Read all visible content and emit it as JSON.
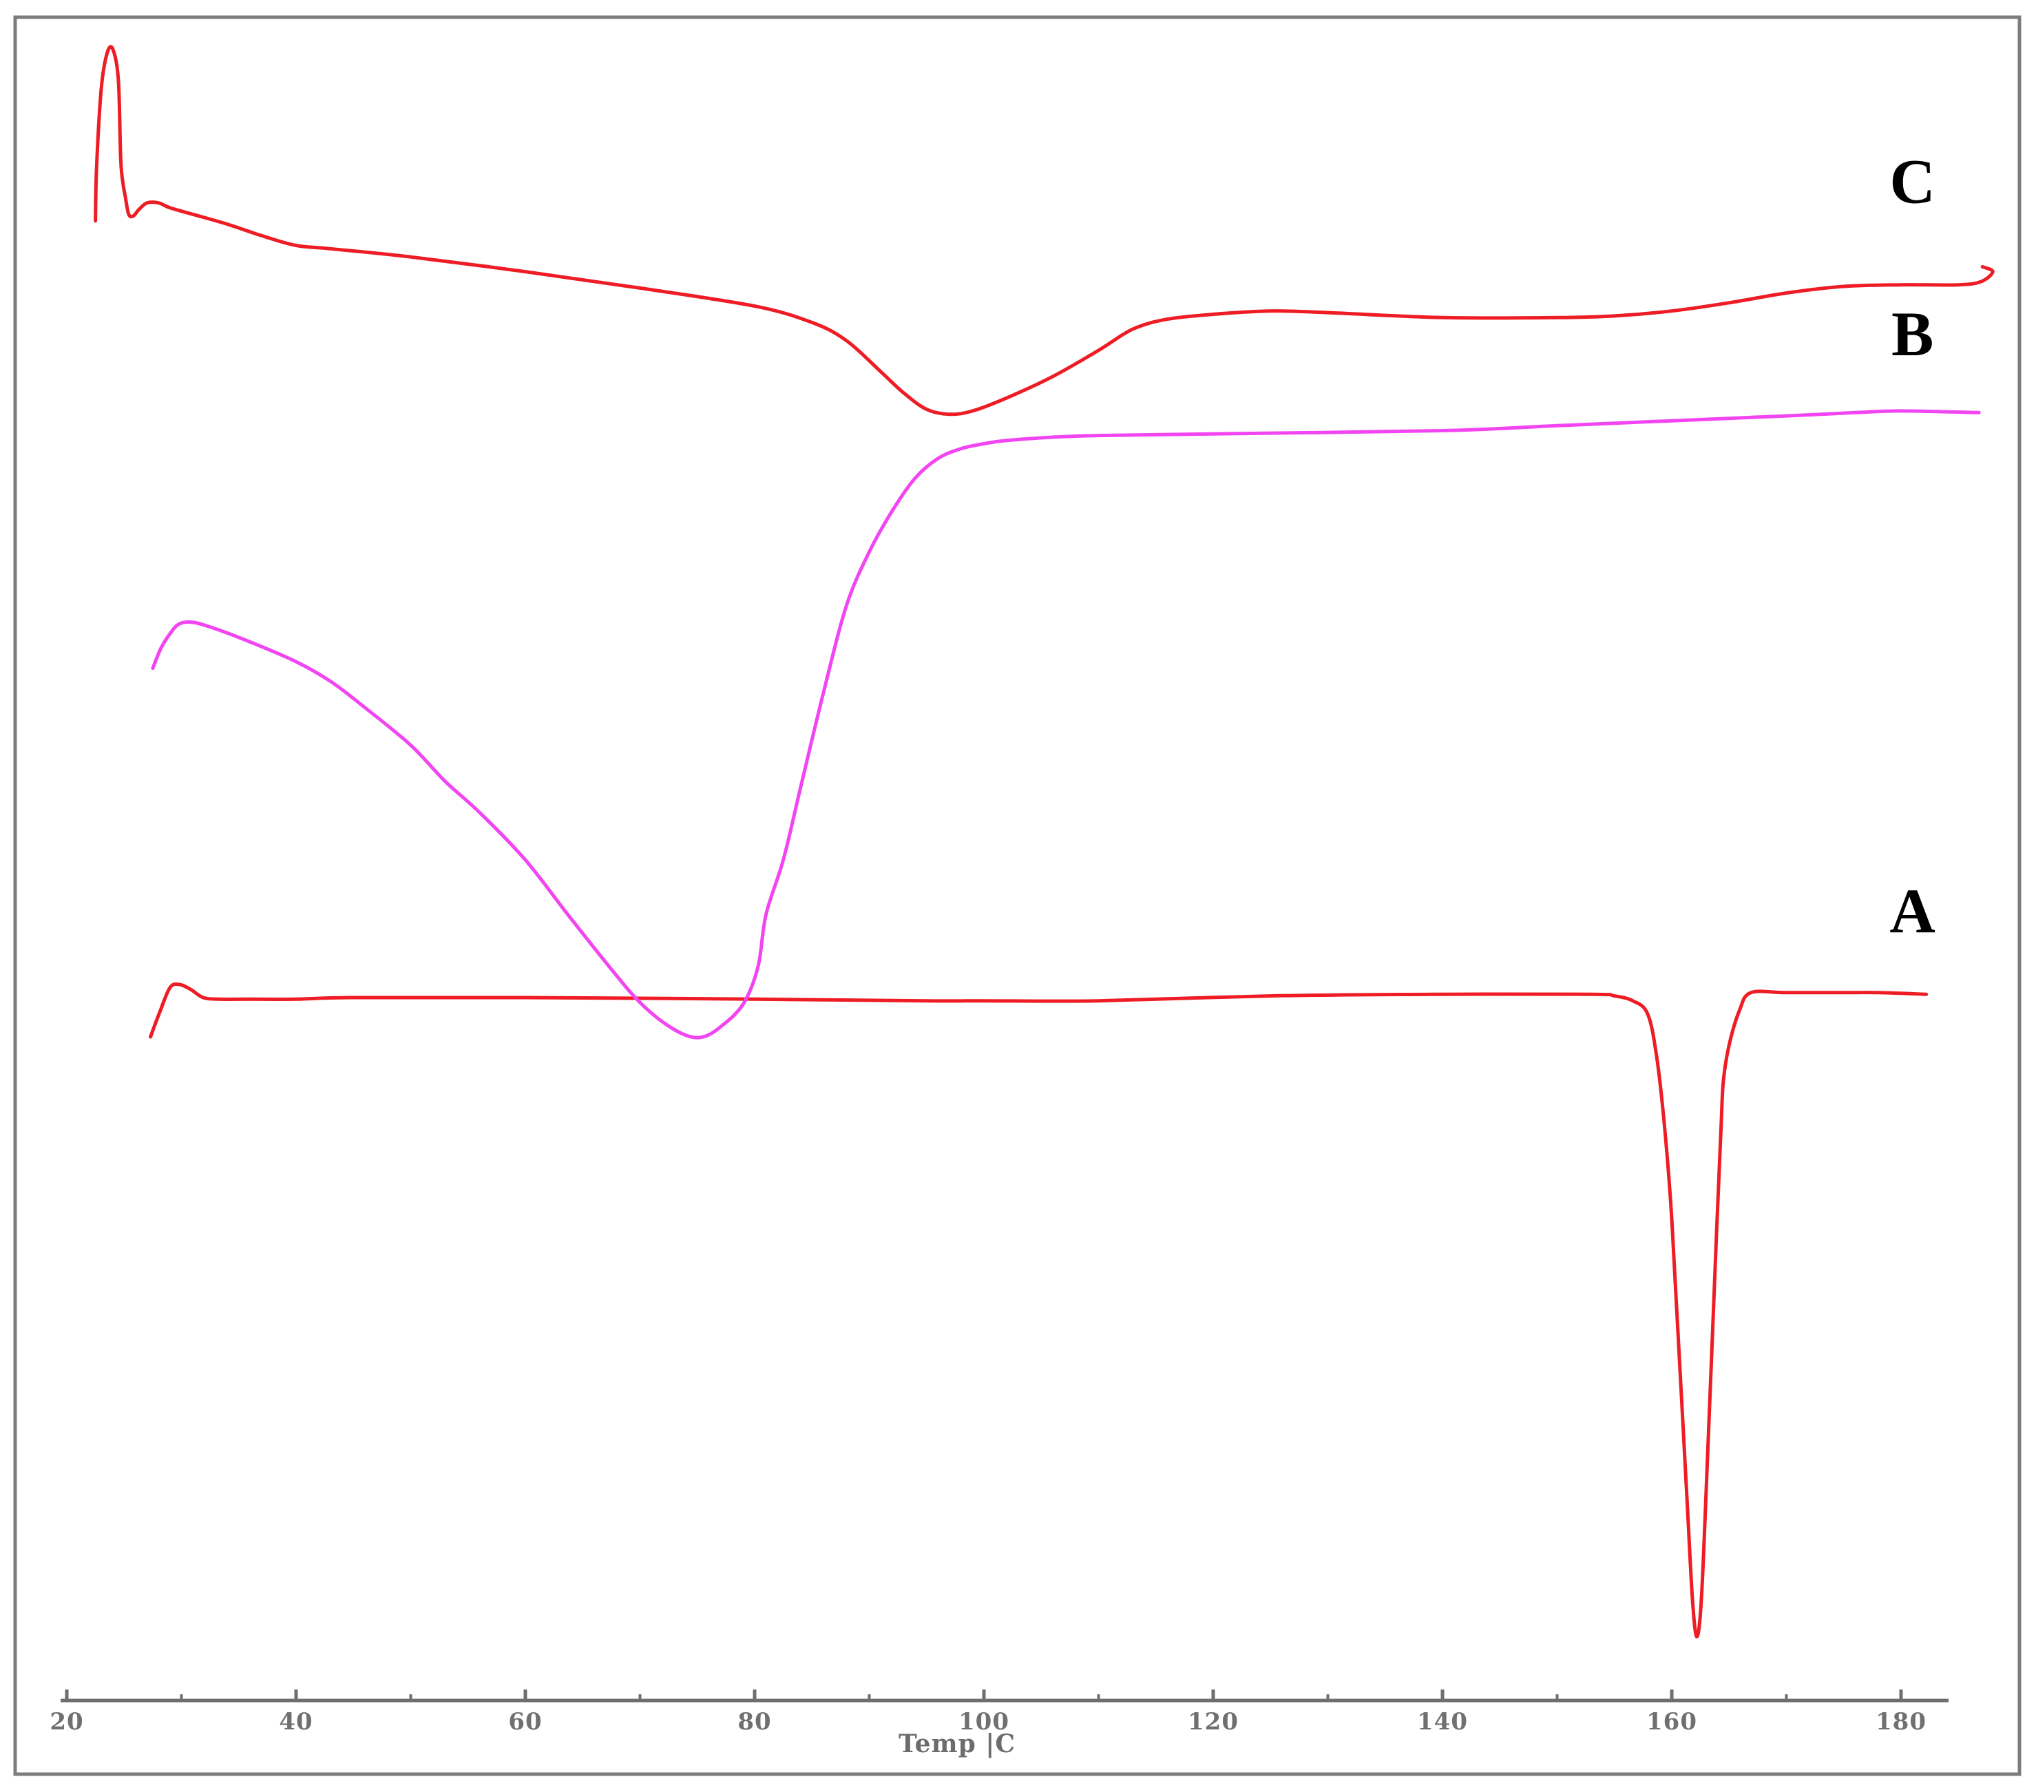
{
  "chart_data": {
    "type": "line",
    "title": "",
    "xlabel": "Temp |C",
    "ylabel": "",
    "xlim": [
      20,
      190
    ],
    "ylim": [
      0,
      100
    ],
    "x_ticks_major": [
      20,
      40,
      60,
      80,
      100,
      120,
      140,
      160,
      180
    ],
    "x_ticks_minor": [
      30,
      50,
      70,
      90,
      110,
      130,
      150,
      170
    ],
    "grid": false,
    "legend": "none",
    "series": [
      {
        "name": "A",
        "color": "#ee1c24",
        "label_at": [
          181,
          44.8
        ],
        "points": [
          [
            27.3,
            38.4
          ],
          [
            28.1,
            39.9
          ],
          [
            29.0,
            41.4
          ],
          [
            29.8,
            41.6
          ],
          [
            30.8,
            41.3
          ],
          [
            31.9,
            40.8
          ],
          [
            33.3,
            40.7
          ],
          [
            36,
            40.7
          ],
          [
            40,
            40.7
          ],
          [
            45,
            40.8
          ],
          [
            60,
            40.8
          ],
          [
            80,
            40.7
          ],
          [
            95,
            40.6
          ],
          [
            100,
            40.6
          ],
          [
            110,
            40.6
          ],
          [
            125,
            40.9
          ],
          [
            140,
            41.0
          ],
          [
            153,
            41.0
          ],
          [
            155,
            40.9
          ],
          [
            156.6,
            40.6
          ],
          [
            157.9,
            39.8
          ],
          [
            158.7,
            37.1
          ],
          [
            159.4,
            32.7
          ],
          [
            160,
            27.3
          ],
          [
            160.6,
            19.6
          ],
          [
            161.3,
            10.6
          ],
          [
            161.8,
            4.1
          ],
          [
            162.2,
            1.8
          ],
          [
            162.6,
            4.3
          ],
          [
            163.1,
            12.4
          ],
          [
            163.9,
            26.3
          ],
          [
            164.3,
            32.9
          ],
          [
            164.5,
            35.7
          ],
          [
            165.0,
            37.9
          ],
          [
            165.9,
            40.0
          ],
          [
            166.9,
            41.1
          ],
          [
            170,
            41.1
          ],
          [
            175,
            41.1
          ],
          [
            178,
            41.1
          ],
          [
            182.2,
            41.0
          ]
        ]
      },
      {
        "name": "B",
        "color": "#f245f2",
        "label_at": [
          181,
          80.0
        ],
        "points": [
          [
            27.5,
            60.9
          ],
          [
            28.2,
            62.1
          ],
          [
            29.0,
            63.0
          ],
          [
            29.8,
            63.6
          ],
          [
            31.0,
            63.7
          ],
          [
            33,
            63.3
          ],
          [
            36,
            62.5
          ],
          [
            40,
            61.3
          ],
          [
            43,
            60.1
          ],
          [
            46,
            58.5
          ],
          [
            50,
            56.2
          ],
          [
            53,
            54.0
          ],
          [
            56,
            52.1
          ],
          [
            60,
            49.2
          ],
          [
            64,
            45.6
          ],
          [
            68,
            42.1
          ],
          [
            70,
            40.5
          ],
          [
            72,
            39.3
          ],
          [
            74,
            38.5
          ],
          [
            75.5,
            38.4
          ],
          [
            77,
            39.0
          ],
          [
            79,
            40.4
          ],
          [
            80.3,
            42.7
          ],
          [
            81,
            45.9
          ],
          [
            82.5,
            49.2
          ],
          [
            84,
            53.6
          ],
          [
            86,
            59.4
          ],
          [
            88,
            64.7
          ],
          [
            90,
            68.0
          ],
          [
            92,
            70.5
          ],
          [
            94,
            72.5
          ],
          [
            96,
            73.7
          ],
          [
            98,
            74.3
          ],
          [
            100,
            74.6
          ],
          [
            102,
            74.8
          ],
          [
            106,
            75.0
          ],
          [
            110,
            75.1
          ],
          [
            120,
            75.2
          ],
          [
            140,
            75.4
          ],
          [
            150,
            75.7
          ],
          [
            160,
            76.0
          ],
          [
            170,
            76.3
          ],
          [
            176,
            76.5
          ],
          [
            180,
            76.6
          ],
          [
            186.8,
            76.5
          ]
        ]
      },
      {
        "name": "C",
        "color": "#ee1c24",
        "label_at": [
          181,
          89.3
        ],
        "points": [
          [
            22.5,
            88.2
          ],
          [
            22.6,
            91.5
          ],
          [
            23.0,
            96.2
          ],
          [
            23.5,
            98.4
          ],
          [
            24.0,
            98.7
          ],
          [
            24.5,
            96.8
          ],
          [
            24.7,
            92.0
          ],
          [
            24.9,
            90.5
          ],
          [
            25.1,
            89.7
          ],
          [
            25.4,
            88.6
          ],
          [
            25.8,
            88.5
          ],
          [
            26.3,
            88.9
          ],
          [
            27,
            89.3
          ],
          [
            28,
            89.3
          ],
          [
            29,
            89.0
          ],
          [
            31,
            88.6
          ],
          [
            34,
            88.0
          ],
          [
            37,
            87.3
          ],
          [
            40,
            86.7
          ],
          [
            43,
            86.5
          ],
          [
            50,
            86.0
          ],
          [
            60,
            85.1
          ],
          [
            70,
            84.1
          ],
          [
            80,
            83.0
          ],
          [
            85,
            82.0
          ],
          [
            88,
            80.9
          ],
          [
            91,
            79.0
          ],
          [
            93,
            77.7
          ],
          [
            95,
            76.7
          ],
          [
            97,
            76.4
          ],
          [
            99,
            76.6
          ],
          [
            102,
            77.4
          ],
          [
            106,
            78.7
          ],
          [
            110,
            80.3
          ],
          [
            113,
            81.6
          ],
          [
            116,
            82.2
          ],
          [
            120,
            82.5
          ],
          [
            125,
            82.7
          ],
          [
            130,
            82.6
          ],
          [
            140,
            82.3
          ],
          [
            150,
            82.3
          ],
          [
            155,
            82.4
          ],
          [
            160,
            82.7
          ],
          [
            165,
            83.2
          ],
          [
            170,
            83.8
          ],
          [
            175,
            84.2
          ],
          [
            180,
            84.3
          ],
          [
            185,
            84.3
          ],
          [
            187,
            84.5
          ],
          [
            188.0,
            85.1
          ],
          [
            187.1,
            85.4
          ]
        ]
      }
    ]
  }
}
